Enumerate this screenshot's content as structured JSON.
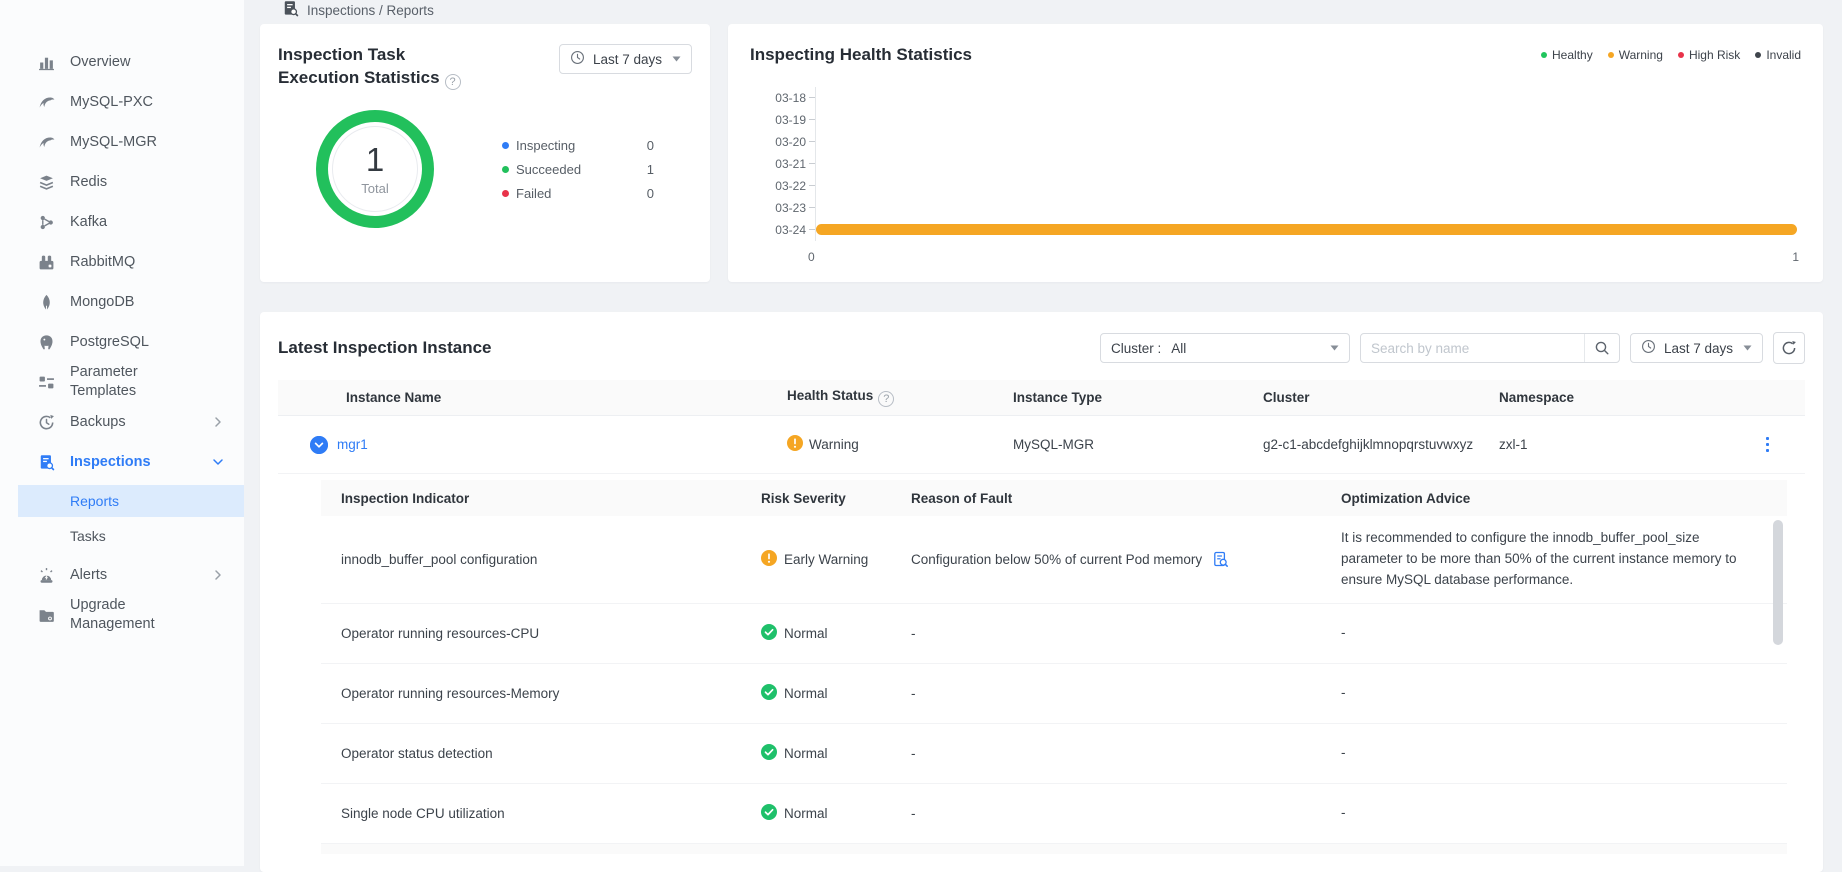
{
  "breadcrumb": {
    "text": "Inspections / Reports"
  },
  "sidebar": {
    "items": [
      {
        "label": "Overview",
        "icon": "bar-chart-icon"
      },
      {
        "label": "MySQL-PXC",
        "icon": "dolphin-icon"
      },
      {
        "label": "MySQL-MGR",
        "icon": "dolphin-icon"
      },
      {
        "label": "Redis",
        "icon": "layers-icon"
      },
      {
        "label": "Kafka",
        "icon": "nodes-icon"
      },
      {
        "label": "RabbitMQ",
        "icon": "rabbit-icon"
      },
      {
        "label": "MongoDB",
        "icon": "leaf-icon"
      },
      {
        "label": "PostgreSQL",
        "icon": "elephant-icon"
      },
      {
        "label": "Parameter Templates",
        "icon": "template-icon",
        "twoLine": true
      },
      {
        "label": "Backups",
        "icon": "backup-icon",
        "chevron": "right"
      },
      {
        "label": "Inspections",
        "icon": "inspection-icon",
        "chevron": "down",
        "active": true,
        "children": [
          {
            "label": "Reports",
            "selected": true
          },
          {
            "label": "Tasks"
          }
        ]
      },
      {
        "label": "Alerts",
        "icon": "siren-icon",
        "chevron": "right"
      },
      {
        "label": "Upgrade Management",
        "icon": "folder-gear-icon",
        "twoLine": true
      }
    ]
  },
  "task_stats_card": {
    "title": "Inspection Task Execution Statistics",
    "time_filter": "Last 7 days",
    "donut": {
      "value": "1",
      "label": "Total",
      "color": "#22c05c"
    },
    "legend": [
      {
        "label": "Inspecting",
        "value": "0",
        "color": "#2f7cf6"
      },
      {
        "label": "Succeeded",
        "value": "1",
        "color": "#22c05c"
      },
      {
        "label": "Failed",
        "value": "0",
        "color": "#e8334a"
      }
    ]
  },
  "health_card": {
    "title": "Inspecting Health Statistics",
    "legend": [
      {
        "label": "Healthy",
        "color": "#21c55d"
      },
      {
        "label": "Warning",
        "color": "#f5a623"
      },
      {
        "label": "High Risk",
        "color": "#e8334a"
      },
      {
        "label": "Invalid",
        "color": "#3f454c"
      }
    ]
  },
  "chart_data": [
    {
      "type": "pie",
      "subtype": "donut",
      "title": "Inspection Task Execution Statistics",
      "series": [
        {
          "name": "Inspecting",
          "value": 0,
          "color": "#2f7cf6"
        },
        {
          "name": "Succeeded",
          "value": 1,
          "color": "#22c05c"
        },
        {
          "name": "Failed",
          "value": 0,
          "color": "#e8334a"
        }
      ],
      "center_value": 1,
      "center_label": "Total",
      "legend_position": "right"
    },
    {
      "type": "bar",
      "orientation": "horizontal",
      "title": "Inspecting Health Statistics",
      "categories": [
        "03-18",
        "03-19",
        "03-20",
        "03-21",
        "03-22",
        "03-23",
        "03-24"
      ],
      "series": [
        {
          "name": "Healthy",
          "color": "#21c55d",
          "values": [
            0,
            0,
            0,
            0,
            0,
            0,
            0
          ]
        },
        {
          "name": "Warning",
          "color": "#f5a623",
          "values": [
            0,
            0,
            0,
            0,
            0,
            0,
            1
          ]
        },
        {
          "name": "High Risk",
          "color": "#e8334a",
          "values": [
            0,
            0,
            0,
            0,
            0,
            0,
            0
          ]
        },
        {
          "name": "Invalid",
          "color": "#3f454c",
          "values": [
            0,
            0,
            0,
            0,
            0,
            0,
            0
          ]
        }
      ],
      "xlim": [
        0,
        1
      ],
      "xticks": [
        "0",
        "1"
      ],
      "grid": false,
      "legend_position": "top-right"
    }
  ],
  "latest_card": {
    "title": "Latest Inspection Instance",
    "cluster_label": "Cluster :",
    "cluster_value": "All",
    "search_placeholder": "Search by name",
    "time_filter": "Last 7 days",
    "table": {
      "columns": [
        "Instance Name",
        "Health Status",
        "Instance Type",
        "Cluster",
        "Namespace"
      ],
      "rows": [
        {
          "instance_name": "mgr1",
          "health_status": "Warning",
          "health_level": "warning",
          "instance_type": "MySQL-MGR",
          "cluster": "g2-c1-abcdefghijklmnopqrstuvwxyz",
          "namespace": "zxl-1",
          "expanded": true
        }
      ]
    },
    "detail_table": {
      "columns": [
        "Inspection Indicator",
        "Risk Severity",
        "Reason of Fault",
        "Optimization Advice"
      ],
      "rows": [
        {
          "indicator": "innodb_buffer_pool configuration",
          "severity": "Early Warning",
          "severity_level": "warning",
          "reason": "Configuration below 50% of current Pod memory",
          "reason_has_doc_icon": true,
          "advice": "It is recommended to configure the innodb_buffer_pool_size parameter to be more than 50% of the current instance memory to ensure MySQL database performance."
        },
        {
          "indicator": "Operator running resources-CPU",
          "severity": "Normal",
          "severity_level": "normal",
          "reason": "-",
          "advice": "-"
        },
        {
          "indicator": "Operator running resources-Memory",
          "severity": "Normal",
          "severity_level": "normal",
          "reason": "-",
          "advice": "-"
        },
        {
          "indicator": "Operator status detection",
          "severity": "Normal",
          "severity_level": "normal",
          "reason": "-",
          "advice": "-"
        },
        {
          "indicator": "Single node CPU utilization",
          "severity": "Normal",
          "severity_level": "normal",
          "reason": "-",
          "advice": "-"
        }
      ]
    }
  },
  "colors": {
    "accent_blue": "#2f7cf6",
    "success_green": "#1fc06a",
    "warning_orange": "#f5a623",
    "danger_red": "#e8334a",
    "invalid_dark": "#3f454c",
    "sidebar_selected_bg": "#dcebfd",
    "page_bg": "#f0f2f5"
  }
}
